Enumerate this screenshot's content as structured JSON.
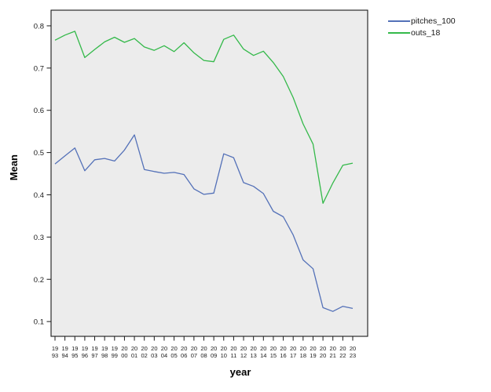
{
  "chart_data": {
    "type": "line",
    "title": "",
    "xlabel": "year",
    "ylabel": "Mean",
    "x": [
      1993,
      1994,
      1995,
      1996,
      1997,
      1998,
      1999,
      2000,
      2001,
      2002,
      2003,
      2004,
      2005,
      2006,
      2007,
      2008,
      2009,
      2010,
      2011,
      2012,
      2013,
      2014,
      2015,
      2016,
      2017,
      2018,
      2019,
      2020,
      2021,
      2022,
      2023
    ],
    "x_tick_two_line": true,
    "yticks": [
      0.1,
      0.2,
      0.3,
      0.4,
      0.5,
      0.6,
      0.7,
      0.8
    ],
    "ylim": [
      0.065,
      0.837
    ],
    "grid": false,
    "legend_position": "top-right",
    "plot_background": "#ECECEC",
    "axis_color": "#1a1a1a",
    "series": [
      {
        "name": "pitches_100",
        "color": "#5471B8",
        "values": [
          0.473,
          0.492,
          0.511,
          0.457,
          0.483,
          0.486,
          0.48,
          0.506,
          0.542,
          0.46,
          0.455,
          0.451,
          0.453,
          0.448,
          0.414,
          0.401,
          0.404,
          0.497,
          0.488,
          0.429,
          0.42,
          0.403,
          0.361,
          0.348,
          0.305,
          0.246,
          0.225,
          0.133,
          0.124,
          0.136,
          0.131
        ]
      },
      {
        "name": "outs_18",
        "color": "#34B94A",
        "values": [
          0.766,
          0.778,
          0.787,
          0.725,
          0.744,
          0.762,
          0.773,
          0.761,
          0.77,
          0.75,
          0.742,
          0.753,
          0.739,
          0.76,
          0.736,
          0.718,
          0.715,
          0.768,
          0.778,
          0.745,
          0.73,
          0.74,
          0.713,
          0.68,
          0.63,
          0.568,
          0.52,
          0.38,
          0.428,
          0.47,
          0.475
        ]
      }
    ]
  }
}
